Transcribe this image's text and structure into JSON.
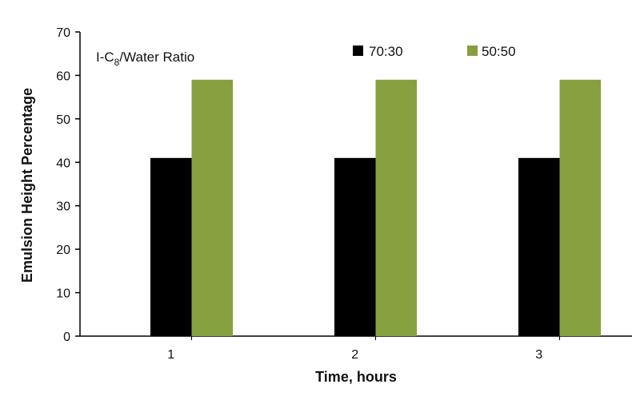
{
  "chart_data": {
    "type": "bar",
    "title": "",
    "xlabel": "Time, hours",
    "ylabel": "Emulsion Height Percentage",
    "categories": [
      "1",
      "2",
      "3"
    ],
    "series": [
      {
        "name": "70:30",
        "color": "#000000",
        "values": [
          41,
          41,
          41
        ]
      },
      {
        "name": "50:50",
        "color": "#86a040",
        "values": [
          59,
          59,
          59
        ]
      }
    ],
    "legend_title": {
      "main": "I-C",
      "sub": "8",
      "rest": "/Water Ratio"
    },
    "ylim": [
      0,
      70
    ],
    "yticks": [
      "0",
      "10",
      "20",
      "30",
      "40",
      "50",
      "60",
      "70"
    ],
    "grid": false,
    "legend_placement": "top"
  }
}
